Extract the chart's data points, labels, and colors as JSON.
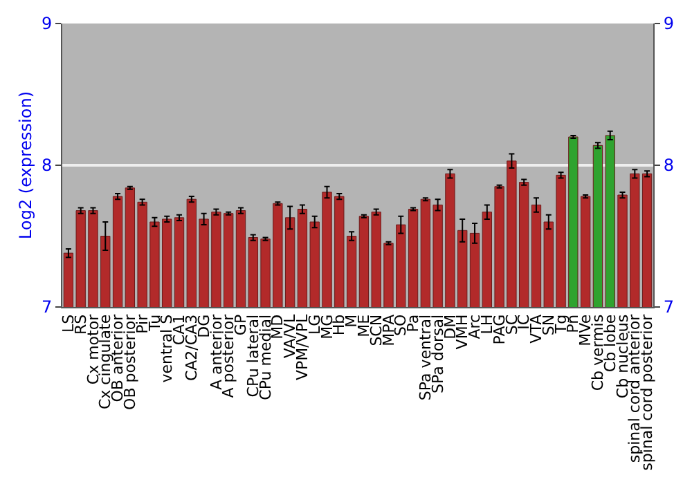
{
  "chart_data": {
    "type": "bar",
    "ylabel": "Log2 (expression)",
    "categories": [
      "LS",
      "RS",
      "Cx motor",
      "Cx cingulate",
      "OB anterior",
      "OB posterior",
      "Pir",
      "Tu",
      "ventral S",
      "CA1",
      "CA2/CA3",
      "DG",
      "A anterior",
      "A posterior",
      "GP",
      "CPu lateral",
      "CPu medial",
      "MD",
      "VA/VL",
      "VPM/VPL",
      "LG",
      "MG",
      "Hb",
      "M",
      "ME",
      "SCN",
      "MPA",
      "SO",
      "Pa",
      "SPa ventral",
      "SPa dorsal",
      "DM",
      "VMH",
      "Arc",
      "LH",
      "PAG",
      "SC",
      "IC",
      "VTA",
      "SN",
      "Tg",
      "Pn",
      "MVe",
      "Cb vermis",
      "Cb lobe",
      "Cb nucleus",
      "spinal cord anterior",
      "spinal cord posterior"
    ],
    "values": [
      7.38,
      7.68,
      7.68,
      7.5,
      7.78,
      7.84,
      7.74,
      7.6,
      7.62,
      7.63,
      7.76,
      7.62,
      7.67,
      7.66,
      7.68,
      7.49,
      7.48,
      7.73,
      7.63,
      7.69,
      7.6,
      7.81,
      7.78,
      7.5,
      7.64,
      7.67,
      7.45,
      7.58,
      7.69,
      7.76,
      7.72,
      7.94,
      7.54,
      7.52,
      7.67,
      7.85,
      8.03,
      7.88,
      7.72,
      7.6,
      7.93,
      8.2,
      7.78,
      8.14,
      8.21,
      7.79,
      7.94,
      7.94
    ],
    "errors": [
      0.03,
      0.02,
      0.02,
      0.1,
      0.02,
      0.01,
      0.02,
      0.03,
      0.02,
      0.02,
      0.02,
      0.04,
      0.02,
      0.01,
      0.02,
      0.02,
      0.01,
      0.01,
      0.08,
      0.03,
      0.04,
      0.04,
      0.02,
      0.03,
      0.01,
      0.02,
      0.01,
      0.06,
      0.01,
      0.01,
      0.04,
      0.03,
      0.08,
      0.07,
      0.05,
      0.01,
      0.05,
      0.02,
      0.05,
      0.05,
      0.02,
      0.01,
      0.01,
      0.02,
      0.03,
      0.02,
      0.03,
      0.02
    ],
    "colors": [
      "#b22a2a",
      "#b22a2a",
      "#b22a2a",
      "#b22a2a",
      "#b22a2a",
      "#b22a2a",
      "#b22a2a",
      "#b22a2a",
      "#b22a2a",
      "#b22a2a",
      "#b22a2a",
      "#b22a2a",
      "#b22a2a",
      "#b22a2a",
      "#b22a2a",
      "#b22a2a",
      "#b22a2a",
      "#b22a2a",
      "#b22a2a",
      "#b22a2a",
      "#b22a2a",
      "#b22a2a",
      "#b22a2a",
      "#b22a2a",
      "#b22a2a",
      "#b22a2a",
      "#b22a2a",
      "#b22a2a",
      "#b22a2a",
      "#b22a2a",
      "#b22a2a",
      "#b22a2a",
      "#b22a2a",
      "#b22a2a",
      "#b22a2a",
      "#b22a2a",
      "#b22a2a",
      "#b22a2a",
      "#b22a2a",
      "#b22a2a",
      "#b22a2a",
      "#2fa32f",
      "#b22a2a",
      "#2fa32f",
      "#2fa32f",
      "#b22a2a",
      "#b22a2a",
      "#b22a2a"
    ],
    "ylim": [
      7,
      9
    ],
    "yticks": [
      7,
      8,
      9
    ],
    "y2lim": [
      7,
      9
    ],
    "y2ticks": [
      7,
      8,
      9
    ],
    "grid": "y"
  }
}
